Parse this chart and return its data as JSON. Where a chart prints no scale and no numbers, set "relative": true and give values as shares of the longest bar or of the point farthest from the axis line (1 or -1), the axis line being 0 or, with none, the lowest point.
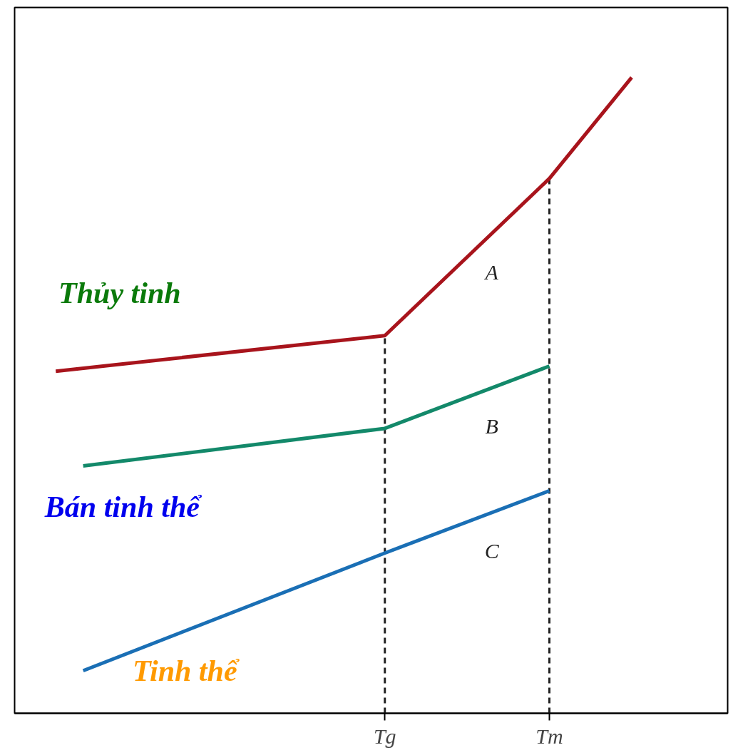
{
  "chart_data": {
    "type": "line",
    "relative": true,
    "categories": [
      null,
      null,
      null,
      null,
      null,
      null,
      null,
      null,
      null,
      null,
      null,
      null,
      null,
      "Tg",
      null,
      null,
      null,
      null,
      null,
      "Tm",
      null,
      null,
      null,
      null,
      null,
      null
    ],
    "grid": false,
    "series": [
      {
        "name": "A",
        "color": "#a8141c",
        "values": [
          null,
          0.538,
          null,
          null,
          null,
          null,
          null,
          null,
          null,
          null,
          null,
          null,
          null,
          0.594,
          null,
          null,
          null,
          null,
          null,
          0.841,
          null,
          null,
          1.0,
          null,
          null,
          null
        ]
      },
      {
        "name": "B",
        "color": "#13896a",
        "values": [
          null,
          null,
          0.389,
          null,
          null,
          null,
          null,
          null,
          null,
          null,
          null,
          null,
          null,
          0.448,
          null,
          null,
          null,
          null,
          null,
          0.546,
          null,
          null,
          null,
          null,
          null,
          null
        ]
      },
      {
        "name": "C",
        "color": "#1a6fb5",
        "values": [
          null,
          null,
          0.067,
          null,
          null,
          null,
          null,
          null,
          null,
          null,
          null,
          null,
          null,
          0.252,
          null,
          null,
          null,
          null,
          null,
          0.35,
          null,
          null,
          null,
          null,
          null,
          null
        ]
      }
    ],
    "ref_lines": [
      {
        "axis": "x",
        "value": "Tg",
        "color": "#222222",
        "line_style": "dashed"
      },
      {
        "axis": "x",
        "value": "Tm",
        "color": "#222222",
        "line_style": "dashed"
      }
    ],
    "annotations": [
      "Thủy tinh",
      "Bán tinh thể",
      "Tinh thể"
    ]
  }
}
